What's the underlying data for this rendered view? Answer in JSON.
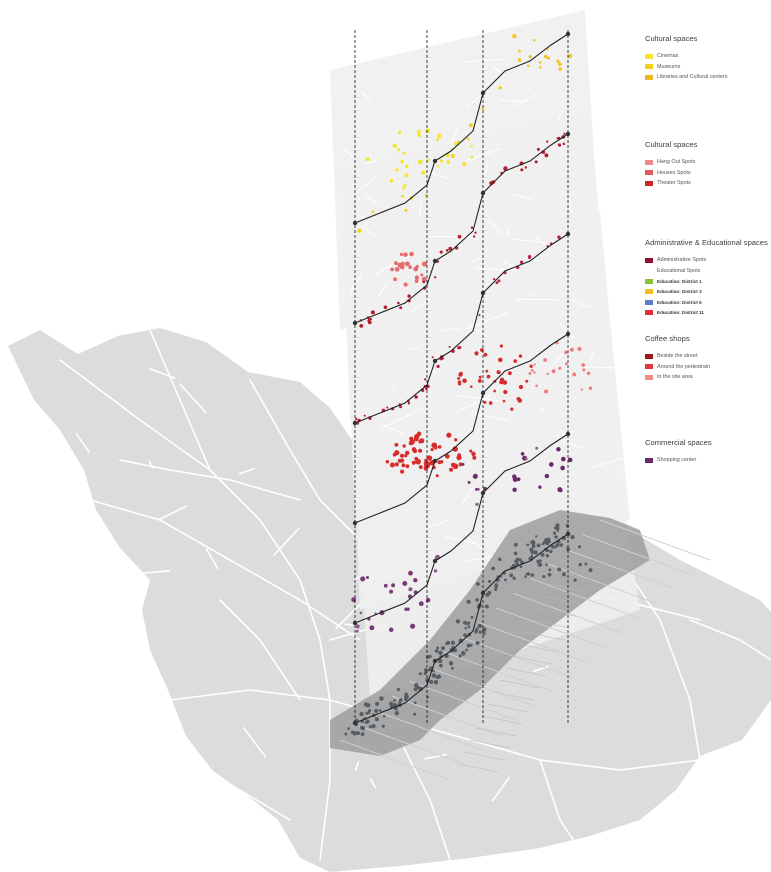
{
  "legends": [
    {
      "title": "Cultural spaces",
      "items": [
        {
          "label": "Cinemas",
          "color": "#f5e430"
        },
        {
          "label": "Museums",
          "color": "#f3d21c"
        },
        {
          "label": "Libraries and Cultural centers",
          "color": "#f0b426"
        }
      ]
    },
    {
      "title": "Cultural spaces",
      "items": [
        {
          "label": "Hang Out Spots",
          "color": "#f08a8a"
        },
        {
          "label": "Houses Spots",
          "color": "#e05a5a"
        },
        {
          "label": "Theater Spots",
          "color": "#c72a2a"
        }
      ]
    },
    {
      "title": "Administrative & Educational spaces",
      "items": [
        {
          "label": "Administrative Spots",
          "color": "#8e1030"
        },
        {
          "label": "Educational Spots",
          "color": ""
        },
        {
          "label": "Education: District 1",
          "color": "#8cbf3c"
        },
        {
          "label": "Education: District 3",
          "color": "#f0c020"
        },
        {
          "label": "Education: District 6",
          "color": "#5a7fc8"
        },
        {
          "label": "Education: District 11",
          "color": "#e0303a"
        }
      ]
    },
    {
      "title": "Coffee shops",
      "items": [
        {
          "label": "Beside the street",
          "color": "#9c1a1a"
        },
        {
          "label": "Around the pedestrain",
          "color": "#e03a3a"
        },
        {
          "label": "In the site area",
          "color": "#f28a8a"
        }
      ]
    },
    {
      "title": "Commercial spaces",
      "items": [
        {
          "label": "Shopping center",
          "color": "#6a2a6a"
        }
      ]
    }
  ],
  "colors": {
    "base_map": "#dcdcdc",
    "site_area": "#9e9e9e",
    "layer_sheet": "#efefef",
    "route_line": "#222222",
    "commercial": "#6a2a6a",
    "coffee": "#d72c2c",
    "admin": "#b81c38",
    "culture_red": "#b51c2c",
    "culture_yellow": "#f2d21e",
    "base_points": "#555e66"
  }
}
